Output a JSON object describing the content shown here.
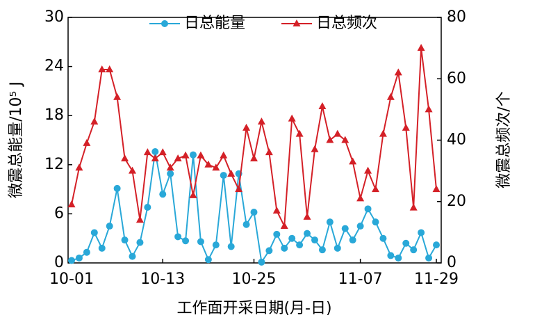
{
  "chart_data": {
    "type": "line",
    "categories": [
      "10-01",
      null,
      null,
      null,
      null,
      null,
      null,
      null,
      null,
      null,
      null,
      null,
      "10-13",
      null,
      null,
      null,
      null,
      null,
      null,
      null,
      null,
      null,
      null,
      null,
      "10-25",
      null,
      null,
      null,
      null,
      null,
      null,
      null,
      null,
      null,
      null,
      null,
      null,
      null,
      "11-07",
      null,
      null,
      null,
      null,
      null,
      null,
      null,
      null,
      null,
      "11-29"
    ],
    "series": [
      {
        "name": "日总能量",
        "color": "#29a8d8",
        "marker": "circle",
        "values": [
          0.3,
          0.6,
          1.3,
          3.7,
          1.8,
          4.5,
          9.1,
          2.8,
          0.8,
          2.5,
          6.8,
          13.6,
          8.4,
          10.9,
          3.2,
          2.7,
          13.2,
          2.6,
          0.4,
          2.2,
          10.7,
          2.0,
          10.9,
          4.7,
          6.2,
          0.1,
          1.5,
          3.5,
          1.8,
          3.0,
          2.2,
          3.6,
          2.8,
          1.6,
          5.0,
          1.8,
          4.2,
          2.8,
          4.5,
          6.6,
          5.0,
          3.0,
          0.9,
          0.6,
          2.4,
          1.6,
          3.7,
          0.6,
          2.2
        ]
      },
      {
        "name": "日总频次",
        "color": "#d42027",
        "marker": "triangle",
        "axis": "y2",
        "values": [
          19,
          31,
          39,
          46,
          63,
          63,
          54,
          34,
          30,
          14,
          36,
          34,
          36,
          31,
          34,
          35,
          22,
          35,
          32,
          31,
          35,
          29,
          24,
          44,
          34,
          46,
          36,
          17,
          12,
          47,
          42,
          15,
          37,
          51,
          40,
          42,
          40,
          33,
          21,
          30,
          24,
          42,
          54,
          62,
          44,
          18,
          70,
          50,
          24
        ]
      }
    ],
    "ylabel": "微震总能量/10⁵ J",
    "y2label": "微震总频次/个",
    "xlabel": "工作面开采日期(月-日)",
    "ylim": [
      0,
      30
    ],
    "yticks": [
      0,
      6,
      12,
      18,
      24,
      30
    ],
    "y2lim": [
      0,
      80
    ],
    "y2ticks": [
      0,
      20,
      40,
      60,
      80
    ],
    "legend": "top"
  }
}
